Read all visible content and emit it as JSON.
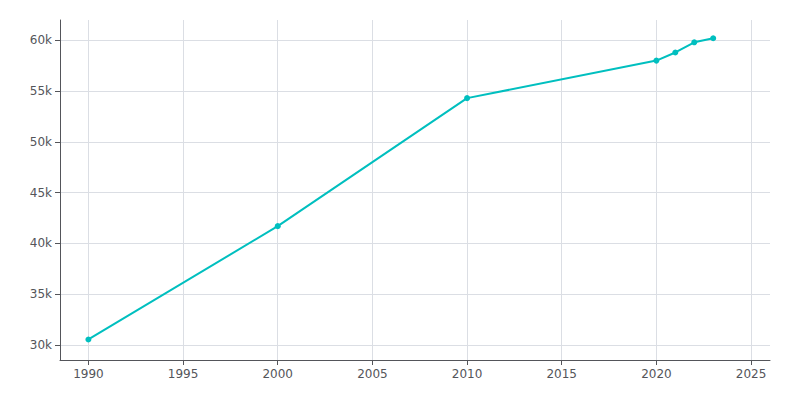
{
  "chart_data": {
    "type": "line",
    "x": [
      1990,
      2000,
      2010,
      2020,
      2021,
      2022,
      2023
    ],
    "values": [
      30522,
      41689,
      54301,
      58000,
      58800,
      59800,
      60200
    ],
    "color": "#00BFBF",
    "marker": "circle",
    "xlim": [
      1988.5,
      2026
    ],
    "ylim": [
      28500,
      62000
    ],
    "xticks": [
      1990,
      1995,
      2000,
      2005,
      2010,
      2015,
      2020,
      2025
    ],
    "yticks": [
      {
        "value": 30000,
        "label": "30k"
      },
      {
        "value": 35000,
        "label": "35k"
      },
      {
        "value": 40000,
        "label": "40k"
      },
      {
        "value": 45000,
        "label": "45k"
      },
      {
        "value": 50000,
        "label": "50k"
      },
      {
        "value": 55000,
        "label": "55k"
      },
      {
        "value": 60000,
        "label": "60k"
      }
    ],
    "grid": true
  }
}
